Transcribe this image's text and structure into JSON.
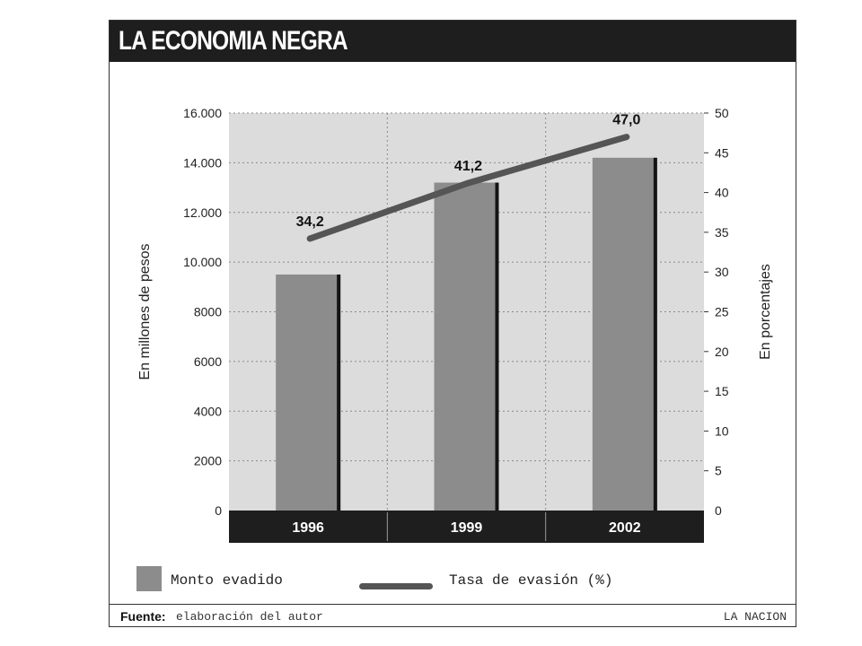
{
  "header": {
    "title": "LA ECONOMIA NEGRA"
  },
  "chart_data": {
    "type": "bar",
    "categories": [
      "1996",
      "1999",
      "2002"
    ],
    "series": [
      {
        "name": "Monto evadido",
        "type": "bar",
        "axis": "left",
        "values": [
          9500,
          13200,
          14200
        ]
      },
      {
        "name": "Tasa de evasión (%)",
        "type": "line",
        "axis": "right",
        "values": [
          34.2,
          41.2,
          47.0
        ],
        "labels": [
          "34,2",
          "41,2",
          "47,0"
        ]
      }
    ],
    "ylabel": "En millones de pesos",
    "y2label": "En porcentajes",
    "ylim": [
      0,
      16000
    ],
    "y2lim": [
      0,
      50
    ],
    "yticks": [
      0,
      2000,
      4000,
      6000,
      8000,
      10000,
      12000,
      14000,
      16000
    ],
    "ytick_labels": [
      "0",
      "2000",
      "4000",
      "6000",
      "8000",
      "10.000",
      "12.000",
      "14.000",
      "16.000"
    ],
    "y2ticks": [
      0,
      5,
      10,
      15,
      20,
      25,
      30,
      35,
      40,
      45,
      50
    ],
    "y2tick_labels": [
      "0",
      "5",
      "10",
      "15",
      "20",
      "25",
      "30",
      "35",
      "40",
      "45",
      "50"
    ],
    "grid": true,
    "legend": "bottom",
    "colors": {
      "bar": "#8c8c8c",
      "line": "#555555",
      "plot_bg": "#dcdcdc",
      "category_band": "#1e1e1e"
    }
  },
  "legend": {
    "bar_label": "Monto evadido",
    "line_label": "Tasa de evasión (%)"
  },
  "footer": {
    "source_prefix": "Fuente:",
    "source_text": "elaboración del autor",
    "credit": "LA NACION"
  }
}
